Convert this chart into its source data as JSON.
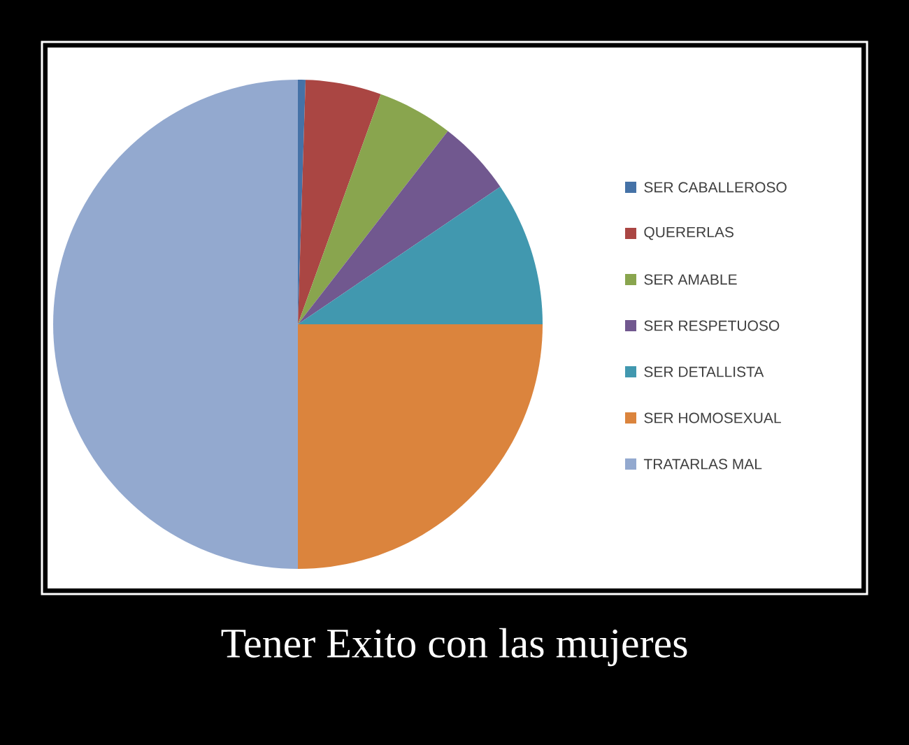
{
  "chart_data": {
    "type": "pie",
    "title": "Tener Exito con las mujeres",
    "categories": [
      "SER CABALLEROSO",
      "QUERERLAS",
      "SER AMABLE",
      "SER RESPETUOSO",
      "SER DETALLISTA",
      "SER HOMOSEXUAL",
      "TRATARLAS MAL"
    ],
    "values": [
      0.5,
      5,
      5,
      5,
      9.5,
      25,
      50
    ],
    "colors": [
      "#4572a7",
      "#aa4643",
      "#89a54e",
      "#71588f",
      "#4198af",
      "#db843d",
      "#93a9cf"
    ],
    "legend": "right"
  }
}
